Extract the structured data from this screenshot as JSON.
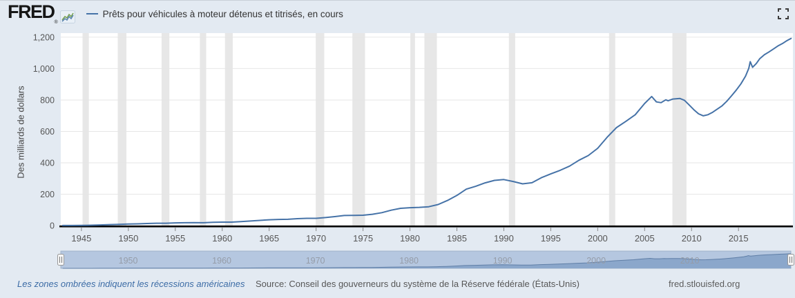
{
  "header": {
    "logo_text": "FRED",
    "logo_registered": "®",
    "legend_marker_color": "#4572a7",
    "series_label": "Prêts pour véhicules à moteur détenus et titrisés, en cours"
  },
  "colors": {
    "page_background": "#e3eaf2",
    "plot_background": "#ffffff",
    "gridline": "#e6e6e6",
    "recession_band": "#e7e7e7",
    "axis_line": "#000000",
    "tick_label": "#555555",
    "series_line": "#4572a7",
    "nav_background": "#b5c7e0",
    "nav_area_fill": "#8ba7cb",
    "nav_area_line": "#5f7ea6",
    "nav_label": "#959ca8",
    "link_blue": "#3b6ba5"
  },
  "chart_data": {
    "type": "line",
    "title": "Prêts pour véhicules à moteur détenus et titrisés, en cours",
    "xlabel": "",
    "ylabel": "Des milliards de dollars",
    "xlim": [
      1942.8,
      2020.8
    ],
    "ylim": [
      0,
      1226
    ],
    "grid": "horizontal",
    "legend_position": "top-left",
    "x_ticks": [
      1945,
      1950,
      1955,
      1960,
      1965,
      1970,
      1975,
      1980,
      1985,
      1990,
      1995,
      2000,
      2005,
      2010,
      2015
    ],
    "x_tick_labels": [
      "1945",
      "1950",
      "1955",
      "1960",
      "1965",
      "1970",
      "1975",
      "1980",
      "1985",
      "1990",
      "1995",
      "2000",
      "2005",
      "2010",
      "2015"
    ],
    "y_ticks": [
      0,
      200,
      400,
      600,
      800,
      1000,
      1200
    ],
    "y_tick_labels": [
      "0",
      "200",
      "400",
      "600",
      "800",
      "1,000",
      "1,200"
    ],
    "recession_bands": [
      [
        1945.12,
        1945.79
      ],
      [
        1948.87,
        1949.79
      ],
      [
        1953.54,
        1954.37
      ],
      [
        1957.62,
        1958.29
      ],
      [
        1960.29,
        1961.12
      ],
      [
        1969.96,
        1970.87
      ],
      [
        1973.87,
        1975.21
      ],
      [
        1980.04,
        1980.54
      ],
      [
        1981.54,
        1982.87
      ],
      [
        1990.54,
        1991.21
      ],
      [
        2001.21,
        2001.87
      ],
      [
        2007.96,
        2009.46
      ]
    ],
    "series": [
      {
        "name": "Prêts pour véhicules à moteur détenus et titrisés, en cours",
        "color": "#4572a7",
        "points": [
          [
            1943,
            0.4
          ],
          [
            1944,
            0.5
          ],
          [
            1945,
            0.8
          ],
          [
            1946,
            2
          ],
          [
            1947,
            4
          ],
          [
            1948,
            6
          ],
          [
            1949,
            8
          ],
          [
            1950,
            10
          ],
          [
            1951,
            11
          ],
          [
            1952,
            13
          ],
          [
            1953,
            15
          ],
          [
            1954,
            15
          ],
          [
            1955,
            17
          ],
          [
            1956,
            18
          ],
          [
            1957,
            19
          ],
          [
            1958,
            18
          ],
          [
            1959,
            21
          ],
          [
            1960,
            22
          ],
          [
            1961,
            22
          ],
          [
            1962,
            25
          ],
          [
            1963,
            29
          ],
          [
            1964,
            33
          ],
          [
            1965,
            37
          ],
          [
            1966,
            39
          ],
          [
            1967,
            40
          ],
          [
            1968,
            44
          ],
          [
            1969,
            46
          ],
          [
            1970,
            46
          ],
          [
            1971,
            51
          ],
          [
            1972,
            57
          ],
          [
            1973,
            64
          ],
          [
            1974,
            65
          ],
          [
            1975,
            66
          ],
          [
            1976,
            72
          ],
          [
            1977,
            82
          ],
          [
            1978,
            98
          ],
          [
            1979,
            110
          ],
          [
            1980,
            114
          ],
          [
            1981,
            116
          ],
          [
            1982,
            120
          ],
          [
            1983,
            134
          ],
          [
            1984,
            160
          ],
          [
            1985,
            192
          ],
          [
            1986,
            232
          ],
          [
            1987,
            250
          ],
          [
            1988,
            272
          ],
          [
            1989,
            288
          ],
          [
            1990,
            293
          ],
          [
            1991,
            281
          ],
          [
            1992,
            266
          ],
          [
            1993,
            273
          ],
          [
            1994,
            305
          ],
          [
            1995,
            329
          ],
          [
            1996,
            352
          ],
          [
            1997,
            379
          ],
          [
            1998,
            416
          ],
          [
            1999,
            446
          ],
          [
            2000,
            492
          ],
          [
            2001,
            562
          ],
          [
            2002,
            624
          ],
          [
            2003,
            664
          ],
          [
            2004,
            706
          ],
          [
            2005,
            778
          ],
          [
            2005.75,
            822
          ],
          [
            2006.25,
            788
          ],
          [
            2006.75,
            783
          ],
          [
            2007.25,
            801
          ],
          [
            2007.5,
            795
          ],
          [
            2008,
            806
          ],
          [
            2008.75,
            810
          ],
          [
            2009.25,
            798
          ],
          [
            2009.75,
            768
          ],
          [
            2010.25,
            738
          ],
          [
            2010.75,
            712
          ],
          [
            2011.25,
            699
          ],
          [
            2011.75,
            706
          ],
          [
            2012.25,
            722
          ],
          [
            2012.75,
            742
          ],
          [
            2013.25,
            763
          ],
          [
            2013.75,
            792
          ],
          [
            2014.25,
            826
          ],
          [
            2014.75,
            862
          ],
          [
            2015.25,
            902
          ],
          [
            2015.75,
            952
          ],
          [
            2016.1,
            1002
          ],
          [
            2016.25,
            1044
          ],
          [
            2016.5,
            1008
          ],
          [
            2016.9,
            1032
          ],
          [
            2017.25,
            1062
          ],
          [
            2017.75,
            1088
          ],
          [
            2018.25,
            1106
          ],
          [
            2018.75,
            1126
          ],
          [
            2019.25,
            1146
          ],
          [
            2019.75,
            1162
          ],
          [
            2020.1,
            1176
          ],
          [
            2020.6,
            1192
          ]
        ]
      }
    ]
  },
  "navigator": {
    "labels": [
      "1950",
      "1960",
      "1970",
      "1980",
      "1990",
      "2000",
      "2010"
    ],
    "years": [
      1950,
      1960,
      1970,
      1980,
      1990,
      2000,
      2010
    ]
  },
  "footer": {
    "recession_note": "Les zones ombrées indiquent les récessions américaines",
    "source": "Source: Conseil des gouverneurs du système de la Réserve fédérale (États-Unis)",
    "site": "fred.stlouisfed.org"
  }
}
